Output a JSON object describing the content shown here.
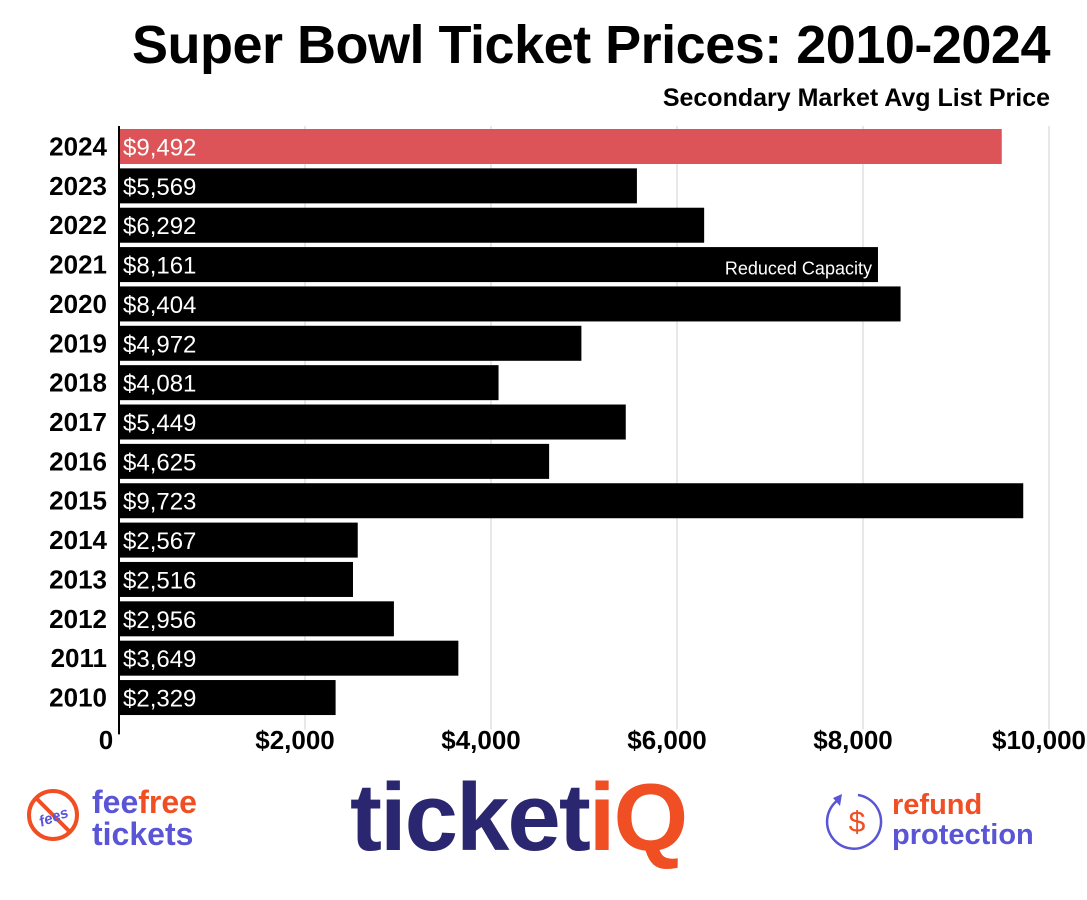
{
  "chart_data": {
    "type": "bar",
    "orientation": "horizontal",
    "title": "Super Bowl Ticket Prices: 2010-2024",
    "subtitle": "Secondary Market Avg List Price",
    "categories": [
      "2024",
      "2023",
      "2022",
      "2021",
      "2020",
      "2019",
      "2018",
      "2017",
      "2016",
      "2015",
      "2014",
      "2013",
      "2012",
      "2011",
      "2010"
    ],
    "values": [
      9492,
      5569,
      6292,
      8161,
      8404,
      4972,
      4081,
      5449,
      4625,
      9723,
      2567,
      2516,
      2956,
      3649,
      2329
    ],
    "data_labels": [
      "$9,492",
      "$5,569",
      "$6,292",
      "$8,161",
      "$8,404",
      "$4,972",
      "$4,081",
      "$5,449",
      "$4,625",
      "$9,723",
      "$2,567",
      "$2,516",
      "$2,956",
      "$3,649",
      "$2,329"
    ],
    "colors": [
      "#dc5457",
      "#000000",
      "#000000",
      "#000000",
      "#000000",
      "#000000",
      "#000000",
      "#000000",
      "#000000",
      "#000000",
      "#000000",
      "#000000",
      "#000000",
      "#000000",
      "#000000"
    ],
    "annotations": [
      {
        "category": "2021",
        "text": "Reduced Capacity"
      }
    ],
    "xlim": [
      0,
      10000
    ],
    "xticks": [
      0,
      2000,
      4000,
      6000,
      8000,
      10000
    ],
    "xtick_labels": [
      "0",
      "$2,000",
      "$4,000",
      "$6,000",
      "$8,000",
      "$10,000"
    ],
    "grid": "vertical",
    "xlabel": "",
    "ylabel": ""
  },
  "logos": {
    "feefree": {
      "badge": "fees",
      "part1": "fee",
      "part2": "free",
      "line2": "tickets"
    },
    "ticketiq": {
      "part1": "ticket",
      "part2": "iQ"
    },
    "refund": {
      "line1": "refund",
      "line2": "protection",
      "symbol": "$"
    }
  }
}
